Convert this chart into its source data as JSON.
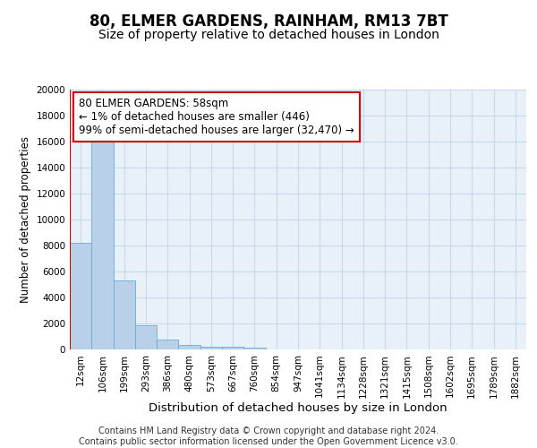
{
  "title": "80, ELMER GARDENS, RAINHAM, RM13 7BT",
  "subtitle": "Size of property relative to detached houses in London",
  "xlabel": "Distribution of detached houses by size in London",
  "ylabel": "Number of detached properties",
  "categories": [
    "12sqm",
    "106sqm",
    "199sqm",
    "293sqm",
    "386sqm",
    "480sqm",
    "573sqm",
    "667sqm",
    "760sqm",
    "854sqm",
    "947sqm",
    "1041sqm",
    "1134sqm",
    "1228sqm",
    "1321sqm",
    "1415sqm",
    "1508sqm",
    "1602sqm",
    "1695sqm",
    "1789sqm",
    "1882sqm"
  ],
  "values": [
    8200,
    16500,
    5300,
    1850,
    750,
    320,
    220,
    200,
    150,
    0,
    0,
    0,
    0,
    0,
    0,
    0,
    0,
    0,
    0,
    0,
    0
  ],
  "bar_color": "#b8d0e8",
  "bar_edge_color": "#6aaad4",
  "vline_color": "#cc0000",
  "annotation_text": "80 ELMER GARDENS: 58sqm\n← 1% of detached houses are smaller (446)\n99% of semi-detached houses are larger (32,470) →",
  "annotation_box_facecolor": "#ffffff",
  "annotation_box_edgecolor": "#cc0000",
  "ylim": [
    0,
    20000
  ],
  "yticks": [
    0,
    2000,
    4000,
    6000,
    8000,
    10000,
    12000,
    14000,
    16000,
    18000,
    20000
  ],
  "grid_color": "#c8d8e8",
  "background_color": "#e8f0f8",
  "footer_text": "Contains HM Land Registry data © Crown copyright and database right 2024.\nContains public sector information licensed under the Open Government Licence v3.0.",
  "title_fontsize": 12,
  "subtitle_fontsize": 10,
  "xlabel_fontsize": 9.5,
  "ylabel_fontsize": 8.5,
  "tick_fontsize": 7.5,
  "annotation_fontsize": 8.5,
  "footer_fontsize": 7
}
